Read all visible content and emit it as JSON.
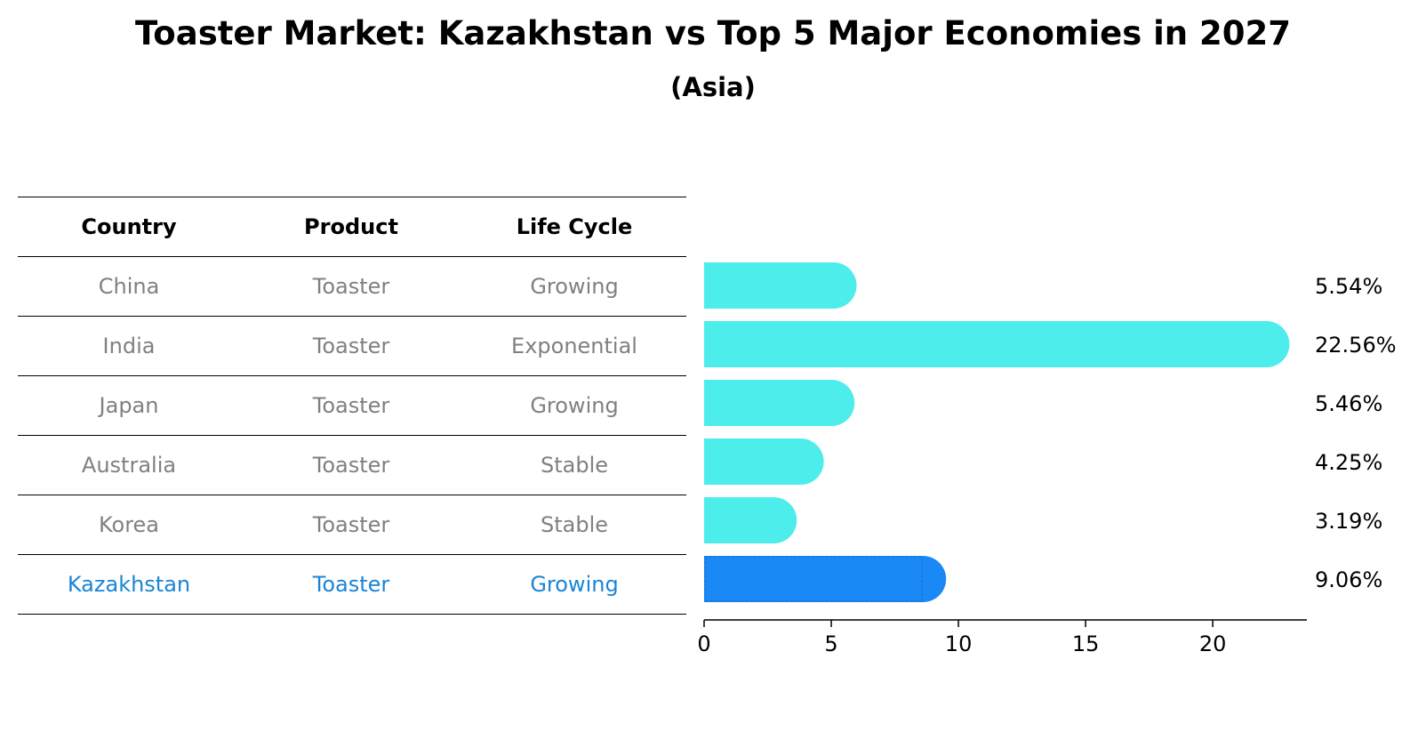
{
  "chart_data": {
    "type": "bar",
    "orientation": "horizontal",
    "title": "Toaster Market: Kazakhstan vs Top 5 Major Economies in 2027",
    "subtitle": "(Asia)",
    "categories": [
      "China",
      "India",
      "Japan",
      "Australia",
      "Korea",
      "Kazakhstan"
    ],
    "values": [
      5.54,
      22.56,
      5.46,
      4.25,
      3.19,
      9.06
    ],
    "value_labels": [
      "5.54%",
      "22.56%",
      "5.46%",
      "4.25%",
      "3.19%",
      "9.06%"
    ],
    "highlight": "Kazakhstan",
    "xlim": [
      0,
      23.7
    ],
    "xticks": [
      0,
      5,
      10,
      15,
      20
    ],
    "xtick_labels": [
      "0",
      "5",
      "10",
      "15",
      "20"
    ],
    "colors": {
      "default": "#4DEDEB",
      "highlight": "#1A88F5"
    }
  },
  "table": {
    "headers": [
      "Country",
      "Product",
      "Life Cycle"
    ],
    "rows": [
      [
        "China",
        "Toaster",
        "Growing"
      ],
      [
        "India",
        "Toaster",
        "Exponential"
      ],
      [
        "Japan",
        "Toaster",
        "Growing"
      ],
      [
        "Australia",
        "Toaster",
        "Stable"
      ],
      [
        "Korea",
        "Toaster",
        "Stable"
      ],
      [
        "Kazakhstan",
        "Toaster",
        "Growing"
      ]
    ],
    "highlight_row": 5
  }
}
